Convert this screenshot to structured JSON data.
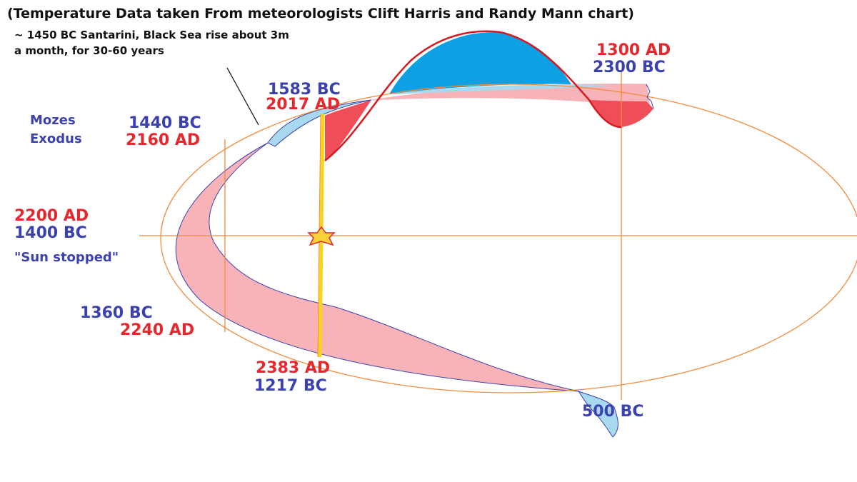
{
  "title": "(Temperature Data taken From meteorologists  Clift Harris and Randy Mann chart)",
  "note": {
    "line1": "~ 1450 BC Santarini, Black Sea rise about 3m",
    "line2": "a month, for 30-60 years"
  },
  "labels": {
    "ad_1300": "1300 AD",
    "bc_2300": "2300 BC",
    "bc_1583": "1583 BC",
    "ad_2017": "2017 AD",
    "mozes": "Mozes",
    "exodus": "Exodus",
    "bc_1440": "1440 BC",
    "ad_2160": "2160 AD",
    "ad_2200": "2200 AD",
    "bc_1400": "1400 BC",
    "sun_stopped": "\"Sun stopped\"",
    "bc_1360": "1360 BC",
    "ad_2240": "2240 AD",
    "ad_2383": "2383 AD",
    "bc_1217": "1217 BC",
    "bc_500": "500 BC"
  },
  "colors": {
    "ad_text": "#e8272c",
    "bc_text": "#3b42b0",
    "warm_fill": "#ef4e59",
    "cool_fill": "#0ea0e2",
    "light_blue_fill": "#a9d9ef",
    "pink_band": "#f7b3b8",
    "orange_line": "#f48a3c",
    "yellow_line": "#f7d51d",
    "star": "#f9d23a"
  }
}
